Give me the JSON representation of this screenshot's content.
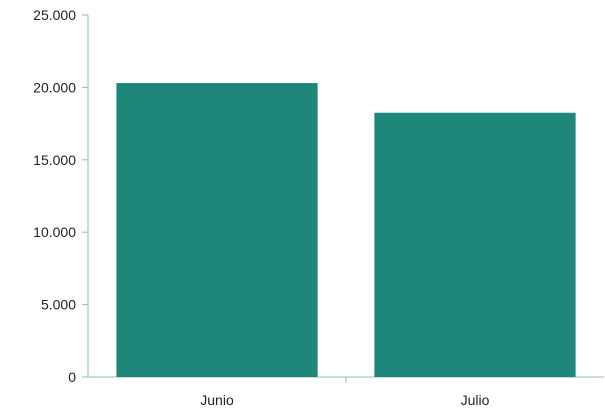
{
  "chart_data": {
    "type": "bar",
    "categories": [
      "Junio",
      "Julio"
    ],
    "series": [
      {
        "values": [
          20300,
          18250
        ]
      }
    ],
    "y_tick_labels": [
      "0",
      "5.000",
      "10.000",
      "15.000",
      "20.000",
      "25.000"
    ],
    "y_ticks": [
      0,
      5000,
      10000,
      15000,
      20000,
      25000
    ],
    "ylim": [
      0,
      25000
    ],
    "title": "",
    "xlabel": "",
    "ylabel": "",
    "grid": false,
    "legend": "none",
    "bar_color": "#1f877a",
    "axis_color": "#8fbfb7"
  }
}
